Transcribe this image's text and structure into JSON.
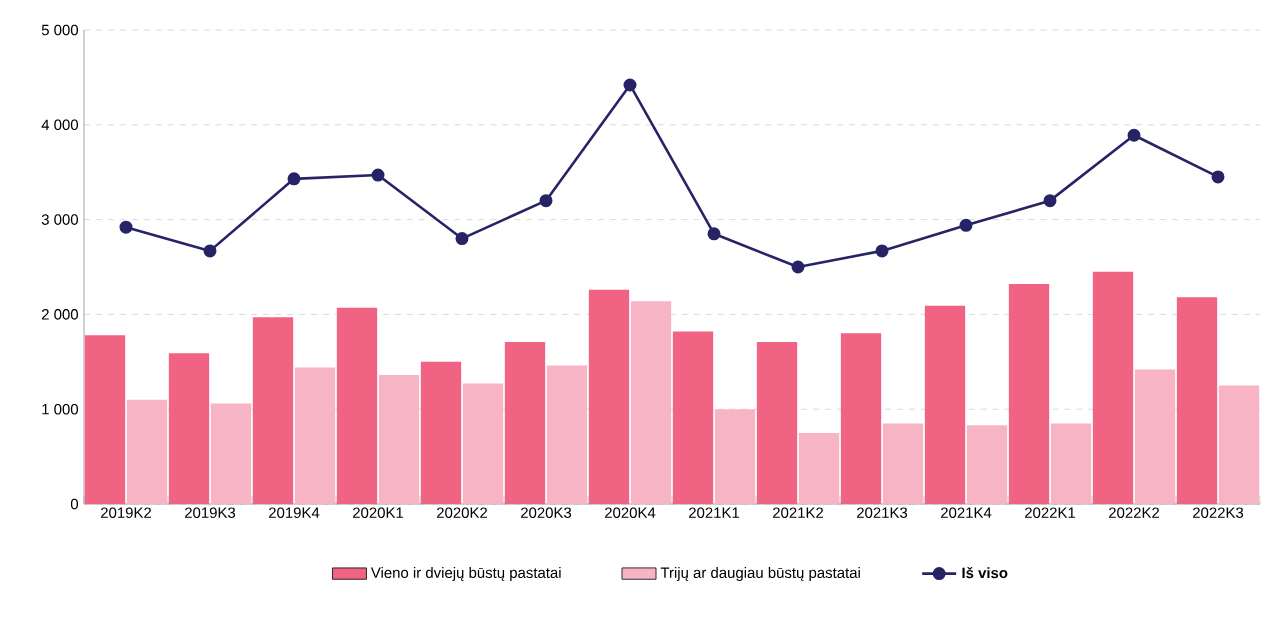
{
  "chart_data": {
    "type": "bar",
    "categories": [
      "2019K2",
      "2019K3",
      "2019K4",
      "2020K1",
      "2020K2",
      "2020K3",
      "2020K4",
      "2021K1",
      "2021K2",
      "2021K3",
      "2021K4",
      "2022K1",
      "2022K2",
      "2022K3"
    ],
    "series": [
      {
        "name": "Vieno ir dviejų būstų pastatai",
        "color": "#f06383",
        "values": [
          1780,
          1590,
          1970,
          2070,
          1500,
          1710,
          2260,
          1820,
          1710,
          1800,
          2090,
          2320,
          2450,
          2180
        ]
      },
      {
        "name": "Trijų ar daugiau būstų pastatai",
        "color": "#f7b4c4",
        "values": [
          1100,
          1060,
          1440,
          1360,
          1270,
          1460,
          2140,
          1000,
          750,
          850,
          830,
          850,
          1420,
          1250
        ]
      },
      {
        "name": "**Iš viso**",
        "type": "line",
        "color": "#262466",
        "marker": "circle",
        "values": [
          2920,
          2670,
          3430,
          3470,
          2800,
          3200,
          4420,
          2850,
          2500,
          2670,
          2940,
          3200,
          3890,
          3450
        ]
      }
    ],
    "ylim": [
      0,
      5000
    ],
    "yticks": [
      0,
      {
        "value": 1000,
        "label": "1 000"
      },
      {
        "value": 2000,
        "label": "2 000"
      },
      {
        "value": 3000,
        "label": "3 000"
      },
      {
        "value": 4000,
        "label": "4 000"
      },
      {
        "value": 5000,
        "label": "5 000"
      }
    ],
    "grid": "y",
    "legend": "bottom"
  }
}
